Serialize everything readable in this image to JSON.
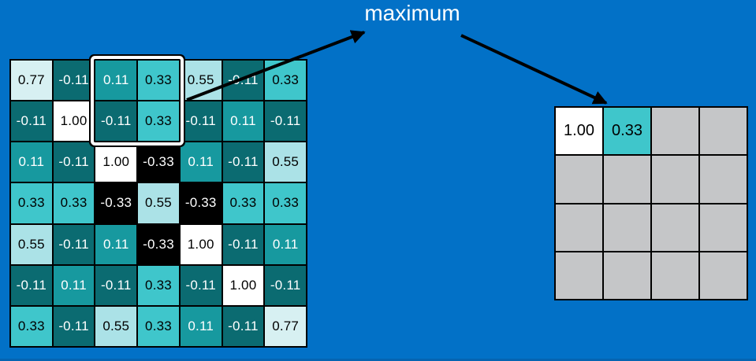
{
  "label": {
    "text": "maximum"
  },
  "colors": {
    "background": "#0271c7",
    "label_text": "#ffffff",
    "arrow": "#000000",
    "grid_line": "#000000",
    "empty_cell": "#c5c6c8",
    "bottom_strip": "#0564b1",
    "highlight_frame_white": "#ffffff",
    "highlight_frame_black": "#000000"
  },
  "value_styles": {
    "1.00": {
      "bg": "#ffffff",
      "fg": "#000000"
    },
    "0.77": {
      "bg": "#d7f0f2",
      "fg": "#000000"
    },
    "0.55": {
      "bg": "#abe2e7",
      "fg": "#000000"
    },
    "0.33": {
      "bg": "#3fc6cb",
      "fg": "#000000"
    },
    "0.11": {
      "bg": "#17999f",
      "fg": "#ffffff"
    },
    "-0.11": {
      "bg": "#0b6b71",
      "fg": "#ffffff"
    },
    "-0.33": {
      "bg": "#000000",
      "fg": "#ffffff"
    }
  },
  "matrix": {
    "rows": 7,
    "cols": 7,
    "values": [
      [
        "0.77",
        "-0.11",
        "0.11",
        "0.33",
        "0.55",
        "-0.11",
        "0.33"
      ],
      [
        "-0.11",
        "1.00",
        "-0.11",
        "0.33",
        "-0.11",
        "0.11",
        "-0.11"
      ],
      [
        "0.11",
        "-0.11",
        "1.00",
        "-0.33",
        "0.11",
        "-0.11",
        "0.55"
      ],
      [
        "0.33",
        "0.33",
        "-0.33",
        "0.55",
        "-0.33",
        "0.33",
        "0.33"
      ],
      [
        "0.55",
        "-0.11",
        "0.11",
        "-0.33",
        "1.00",
        "-0.11",
        "0.11"
      ],
      [
        "-0.11",
        "0.11",
        "-0.11",
        "0.33",
        "-0.11",
        "1.00",
        "-0.11"
      ],
      [
        "0.33",
        "-0.11",
        "0.55",
        "0.33",
        "0.11",
        "-0.11",
        "0.77"
      ]
    ],
    "highlight": {
      "row_start": 0,
      "col_start": 2,
      "rows": 2,
      "cols": 2,
      "window_values": [
        "0.11",
        "0.33",
        "-0.11",
        "0.33"
      ]
    }
  },
  "output": {
    "rows": 4,
    "cols": 4,
    "cells": [
      [
        "1.00",
        "0.33",
        "",
        ""
      ],
      [
        "",
        "",
        "",
        ""
      ],
      [
        "",
        "",
        "",
        ""
      ],
      [
        "",
        "",
        "",
        ""
      ]
    ]
  },
  "arrows": [
    {
      "from": "pooling-window",
      "to": "maximum-label"
    },
    {
      "from": "maximum-label",
      "to": "output-cell-r0c1"
    }
  ]
}
